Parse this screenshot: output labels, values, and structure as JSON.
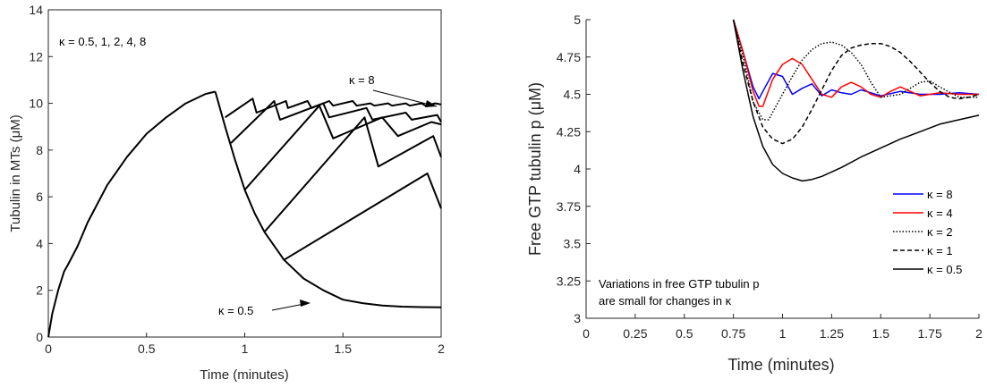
{
  "chart_data": [
    {
      "type": "line",
      "title": "",
      "xlabel": "Time (minutes)",
      "ylabel": "Tubulin in MTs (μM)",
      "xlim": [
        0,
        2
      ],
      "ylim": [
        0,
        14
      ],
      "x_ticks": [
        "0",
        "0.5",
        "1",
        "1.5",
        "2"
      ],
      "y_ticks": [
        "0",
        "2",
        "4",
        "6",
        "8",
        "10",
        "12",
        "14"
      ],
      "annotations": {
        "kappa_list": "κ = 0.5, 1, 2, 4, 8",
        "kappa_8": "κ = 8",
        "kappa_05": "κ = 0.5"
      },
      "series": [
        {
          "x": [
            0,
            0.02,
            0.05,
            0.08,
            0.1,
            0.15,
            0.2,
            0.3,
            0.4,
            0.5,
            0.6,
            0.7,
            0.8,
            0.85
          ],
          "values": [
            0,
            1.0,
            2.0,
            2.8,
            3.1,
            3.9,
            4.9,
            6.5,
            7.7,
            8.7,
            9.4,
            10.0,
            10.4,
            10.5
          ]
        },
        {
          "x": [
            0.85,
            0.9,
            0.95,
            1.0,
            1.05,
            1.1,
            1.2,
            1.3,
            1.4,
            1.5,
            1.6,
            1.7,
            1.8,
            1.9,
            2.0
          ],
          "values": [
            10.5,
            9.0,
            7.6,
            6.3,
            5.3,
            4.5,
            3.3,
            2.5,
            2.0,
            1.6,
            1.45,
            1.35,
            1.3,
            1.28,
            1.27
          ]
        },
        {
          "x": [
            0.9,
            1.04,
            1.06,
            1.21,
            1.22,
            1.32,
            1.34,
            1.43,
            1.45,
            1.55,
            1.57,
            1.64,
            1.66,
            1.73,
            1.75,
            1.82,
            1.84,
            1.9,
            1.92,
            1.97,
            2.0
          ],
          "values": [
            9.4,
            10.2,
            9.6,
            10.1,
            9.8,
            10.1,
            9.8,
            10.1,
            9.9,
            10.1,
            9.9,
            10.0,
            9.9,
            10.0,
            9.9,
            10.0,
            9.9,
            10.0,
            9.9,
            10.0,
            9.95
          ]
        },
        {
          "x": [
            0.93,
            1.15,
            1.18,
            1.4,
            1.43,
            1.62,
            1.65,
            1.82,
            1.85,
            1.98,
            2.0
          ],
          "values": [
            8.3,
            10.1,
            9.3,
            10.0,
            9.4,
            9.8,
            9.3,
            9.6,
            9.3,
            9.5,
            9.2
          ]
        },
        {
          "x": [
            1.0,
            1.38,
            1.45,
            1.7,
            1.78,
            1.95,
            2.0
          ],
          "values": [
            6.3,
            9.9,
            8.5,
            9.4,
            8.6,
            9.2,
            9.1
          ]
        },
        {
          "x": [
            1.1,
            1.61,
            1.68,
            1.96,
            2.0
          ],
          "values": [
            4.5,
            9.4,
            7.3,
            8.6,
            7.7
          ]
        },
        {
          "x": [
            1.2,
            1.93,
            2.0
          ],
          "values": [
            3.3,
            7.0,
            5.5
          ]
        }
      ]
    },
    {
      "type": "line",
      "title": "",
      "xlabel": "Time (minutes)",
      "ylabel": "Free GTP tubulin p (μM)",
      "xlim": [
        0,
        2
      ],
      "ylim": [
        3,
        5
      ],
      "x_ticks": [
        "0",
        "0.25",
        "0.5",
        "0.75",
        "1",
        "1.25",
        "1.5",
        "1.75",
        "2"
      ],
      "y_ticks": [
        "3",
        "3.25",
        "3.5",
        "3.75",
        "4",
        "4.25",
        "4.5",
        "4.75",
        "5"
      ],
      "legend_position": "lower-right",
      "annotation_line1": "Variations in free GTP tubulin p",
      "annotation_line2": "are small for changes in κ",
      "series": [
        {
          "name": "κ = 8",
          "color": "#0000ff",
          "dash": "",
          "x": [
            0.75,
            0.8,
            0.85,
            0.88,
            0.9,
            0.95,
            1.0,
            1.05,
            1.1,
            1.15,
            1.2,
            1.25,
            1.3,
            1.35,
            1.4,
            1.5,
            1.6,
            1.7,
            1.8,
            1.9,
            2.0
          ],
          "values": [
            5.0,
            4.78,
            4.55,
            4.47,
            4.52,
            4.64,
            4.62,
            4.5,
            4.54,
            4.57,
            4.49,
            4.53,
            4.51,
            4.5,
            4.53,
            4.49,
            4.52,
            4.5,
            4.5,
            4.51,
            4.5
          ]
        },
        {
          "name": "κ = 4",
          "color": "#ff0000",
          "dash": "",
          "x": [
            0.75,
            0.8,
            0.85,
            0.88,
            0.9,
            0.95,
            1.0,
            1.05,
            1.1,
            1.15,
            1.2,
            1.25,
            1.3,
            1.35,
            1.4,
            1.45,
            1.5,
            1.55,
            1.6,
            1.65,
            1.7,
            1.8,
            1.9,
            2.0
          ],
          "values": [
            5.0,
            4.78,
            4.52,
            4.42,
            4.42,
            4.6,
            4.7,
            4.74,
            4.7,
            4.6,
            4.5,
            4.48,
            4.55,
            4.58,
            4.55,
            4.5,
            4.48,
            4.52,
            4.55,
            4.52,
            4.49,
            4.51,
            4.5,
            4.5
          ]
        },
        {
          "name": "κ = 2",
          "color": "#000000",
          "dash": "1.5,2",
          "x": [
            0.75,
            0.8,
            0.85,
            0.9,
            0.93,
            0.95,
            1.0,
            1.05,
            1.1,
            1.15,
            1.2,
            1.25,
            1.3,
            1.35,
            1.4,
            1.45,
            1.5,
            1.6,
            1.7,
            1.75,
            1.8,
            1.9,
            2.0
          ],
          "values": [
            5.0,
            4.75,
            4.45,
            4.33,
            4.33,
            4.38,
            4.5,
            4.62,
            4.73,
            4.8,
            4.84,
            4.85,
            4.83,
            4.78,
            4.7,
            4.58,
            4.48,
            4.5,
            4.58,
            4.59,
            4.55,
            4.48,
            4.48
          ]
        },
        {
          "name": "κ = 1",
          "color": "#000000",
          "dash": "5,3",
          "x": [
            0.75,
            0.8,
            0.85,
            0.9,
            0.95,
            1.0,
            1.05,
            1.1,
            1.15,
            1.2,
            1.25,
            1.3,
            1.35,
            1.4,
            1.45,
            1.5,
            1.55,
            1.6,
            1.65,
            1.7,
            1.75,
            1.8,
            1.85,
            1.9,
            1.95,
            2.0
          ],
          "values": [
            5.0,
            4.7,
            4.45,
            4.28,
            4.2,
            4.17,
            4.2,
            4.28,
            4.4,
            4.53,
            4.66,
            4.76,
            4.81,
            4.83,
            4.84,
            4.84,
            4.82,
            4.78,
            4.72,
            4.65,
            4.58,
            4.52,
            4.48,
            4.47,
            4.48,
            4.5
          ]
        },
        {
          "name": "κ = 0.5",
          "color": "#000000",
          "dash": "",
          "x": [
            0.75,
            0.8,
            0.85,
            0.9,
            0.95,
            1.0,
            1.05,
            1.1,
            1.15,
            1.2,
            1.3,
            1.4,
            1.5,
            1.6,
            1.7,
            1.8,
            1.9,
            2.0
          ],
          "values": [
            5.0,
            4.65,
            4.35,
            4.15,
            4.03,
            3.97,
            3.94,
            3.92,
            3.93,
            3.95,
            4.01,
            4.08,
            4.14,
            4.2,
            4.25,
            4.3,
            4.33,
            4.36
          ]
        }
      ]
    }
  ]
}
